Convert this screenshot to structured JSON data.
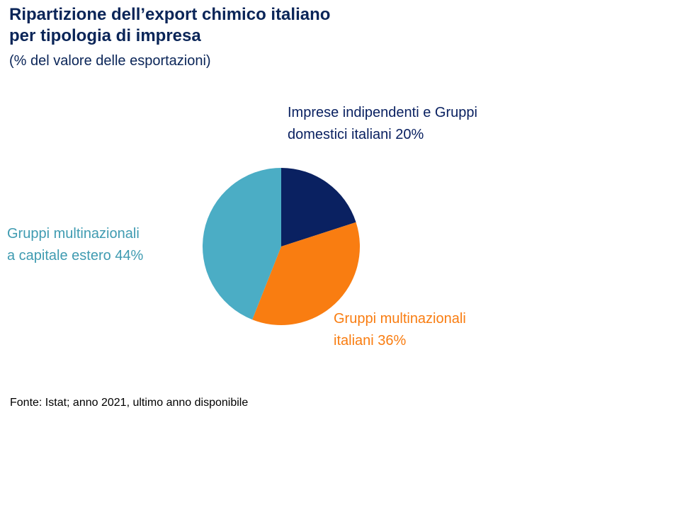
{
  "header": {
    "title_lines": [
      "Ripartizione dell’export chimico italiano",
      "per tipologia di impresa"
    ],
    "subtitle": "(% del valore delle esportazioni)"
  },
  "chart_data": {
    "type": "pie",
    "title": "Ripartizione dell’export chimico italiano per tipologia di impresa",
    "subtitle": "(% del valore delle esportazioni)",
    "start_angle": "12 o'clock",
    "direction": "clockwise",
    "slices": [
      {
        "label_lines": [
          "Imprese indipendenti e Gruppi",
          "domestici italiani 20%"
        ],
        "value": 20,
        "color": "#0a2161",
        "label_color": "#0a2161"
      },
      {
        "label_lines": [
          "Gruppi multinazionali",
          "italiani 36%"
        ],
        "value": 36,
        "color": "#f97d11",
        "label_color": "#f97d11"
      },
      {
        "label_lines": [
          "Gruppi multinazionali",
          "a capitale estero 44%"
        ],
        "value": 44,
        "color": "#4badc5",
        "label_color": "#3f9bb1"
      }
    ]
  },
  "footer": {
    "source": "Fonte: Istat; anno 2021, ultimo anno disponibile"
  }
}
